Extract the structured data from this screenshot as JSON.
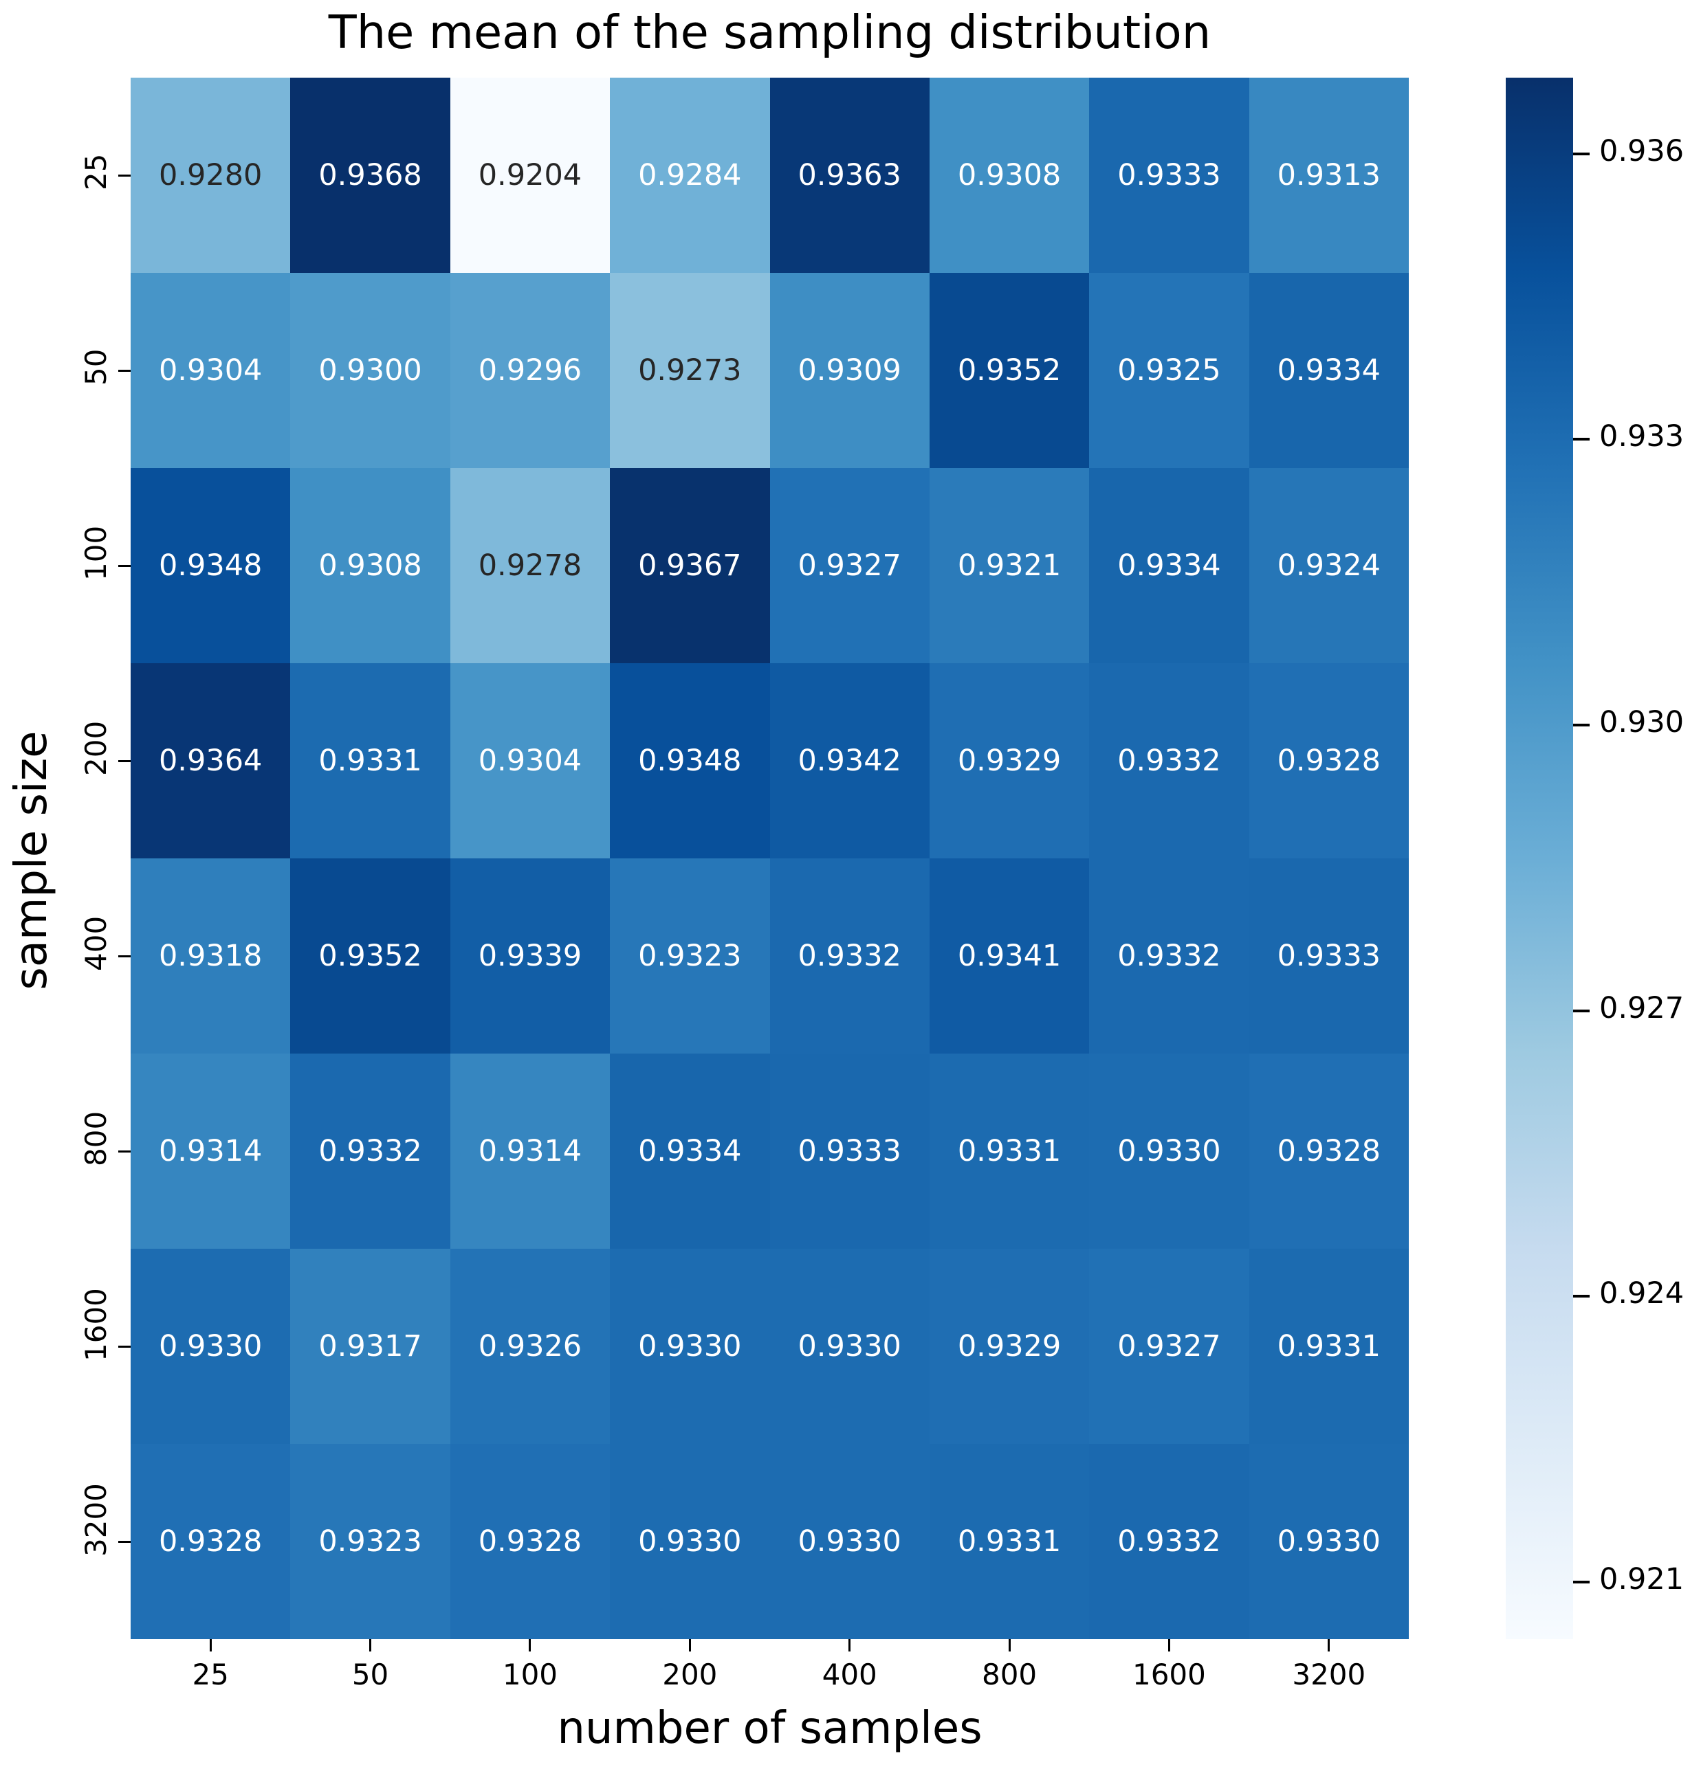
{
  "chart_data": {
    "type": "heatmap",
    "title": "The mean of the sampling distribution",
    "xlabel": "number of samples",
    "ylabel": "sample size",
    "x_categories": [
      "25",
      "50",
      "100",
      "200",
      "400",
      "800",
      "1600",
      "3200"
    ],
    "y_categories": [
      "25",
      "50",
      "100",
      "200",
      "400",
      "800",
      "1600",
      "3200"
    ],
    "values": [
      [
        0.928,
        0.9368,
        0.9204,
        0.9284,
        0.9363,
        0.9308,
        0.9333,
        0.9313
      ],
      [
        0.9304,
        0.93,
        0.9296,
        0.9273,
        0.9309,
        0.9352,
        0.9325,
        0.9334
      ],
      [
        0.9348,
        0.9308,
        0.9278,
        0.9367,
        0.9327,
        0.9321,
        0.9334,
        0.9324
      ],
      [
        0.9364,
        0.9331,
        0.9304,
        0.9348,
        0.9342,
        0.9329,
        0.9332,
        0.9328
      ],
      [
        0.9318,
        0.9352,
        0.9339,
        0.9323,
        0.9332,
        0.9341,
        0.9332,
        0.9333
      ],
      [
        0.9314,
        0.9332,
        0.9314,
        0.9334,
        0.9333,
        0.9331,
        0.933,
        0.9328
      ],
      [
        0.933,
        0.9317,
        0.9326,
        0.933,
        0.933,
        0.9329,
        0.9327,
        0.9331
      ],
      [
        0.9328,
        0.9323,
        0.9328,
        0.933,
        0.933,
        0.9331,
        0.9332,
        0.933
      ]
    ],
    "annotation_decimals": 4,
    "vmin": 0.9204,
    "vmax": 0.9368,
    "colormap": "Blues",
    "colormap_stops": [
      "#f7fbff",
      "#deebf7",
      "#c6dbef",
      "#9ecae1",
      "#6baed6",
      "#4292c6",
      "#2171b5",
      "#08519c",
      "#08306b"
    ],
    "colorbar_ticks": [
      {
        "label": "0.936",
        "value": 0.936
      },
      {
        "label": "0.933",
        "value": 0.933
      },
      {
        "label": "0.930",
        "value": 0.93
      },
      {
        "label": "0.927",
        "value": 0.927
      },
      {
        "label": "0.924",
        "value": 0.924
      },
      {
        "label": "0.921",
        "value": 0.921
      }
    ],
    "annotation_text_colors": {
      "on_light": "#262626",
      "on_dark": "#ffffff"
    },
    "grid": false,
    "legend_position": "colorbar-right"
  }
}
